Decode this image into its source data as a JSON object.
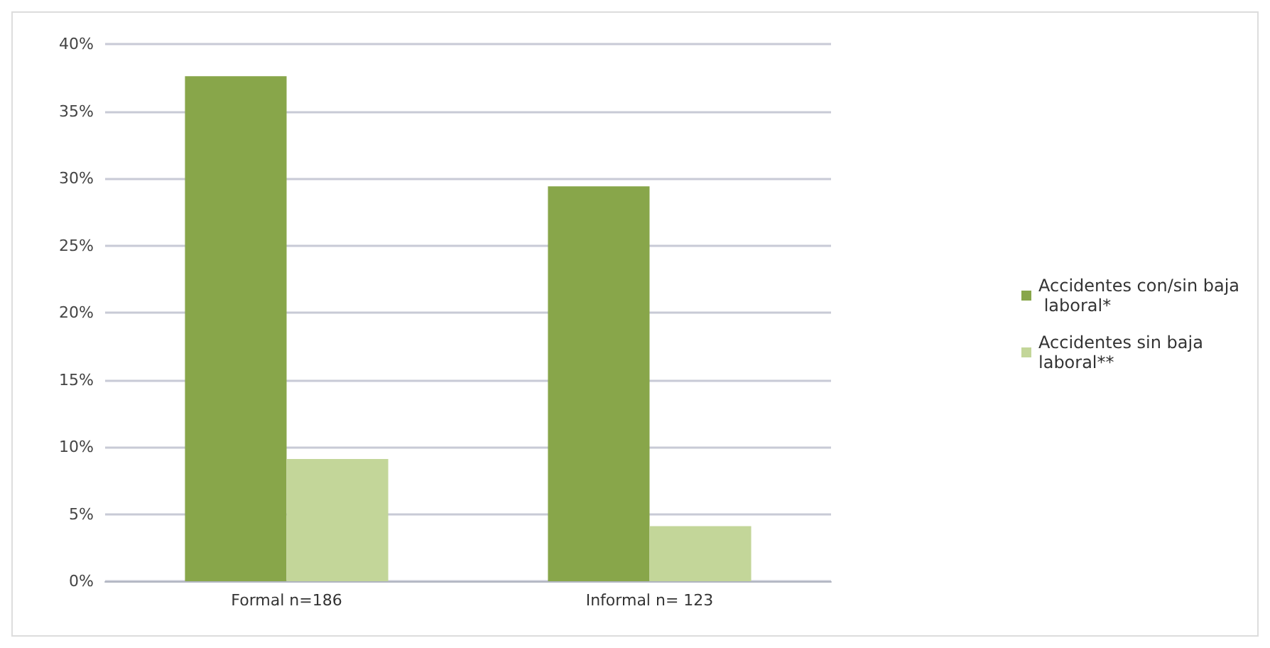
{
  "chart_data": {
    "type": "bar",
    "categories": [
      "Formal n=186",
      "Informal n= 123"
    ],
    "series": [
      {
        "name": "Accidentes con/sin baja laboral*",
        "color": "#88a64a",
        "values": [
          37.6,
          29.4
        ]
      },
      {
        "name": "Accidentes sin baja laboral**",
        "color": "#c3d699",
        "values": [
          9.1,
          4.1
        ]
      }
    ],
    "ylim": [
      0,
      40
    ],
    "yticks": [
      {
        "value": 0,
        "label": "0%"
      },
      {
        "value": 5,
        "label": "5%"
      },
      {
        "value": 10,
        "label": "10%"
      },
      {
        "value": 15,
        "label": "15%"
      },
      {
        "value": 20,
        "label": "20%"
      },
      {
        "value": 25,
        "label": "25%"
      },
      {
        "value": 30,
        "label": "30%"
      },
      {
        "value": 35,
        "label": "35%"
      },
      {
        "value": 40,
        "label": "40%"
      }
    ],
    "grid": "y",
    "legend": "right"
  }
}
